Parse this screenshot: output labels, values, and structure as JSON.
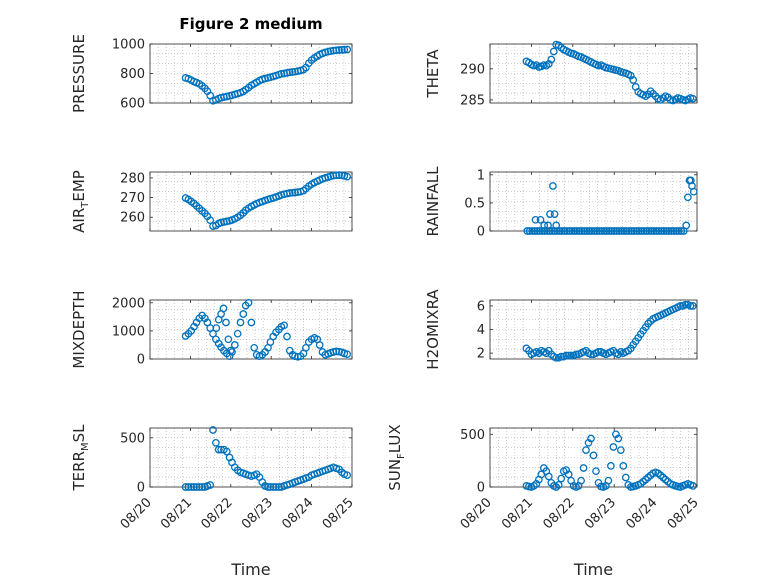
{
  "figure": {
    "title": "Figure 2 medium",
    "marker_color": "#0072BD",
    "grid_color": "#b0b0b0",
    "axis_color": "#262626"
  },
  "chart_data": [
    {
      "type": "scatter",
      "id": "pressure",
      "ylabel": "PRESSURE",
      "xlabel": "",
      "title": "Figure 2 medium",
      "xlim": [
        "08/20",
        "08/25"
      ],
      "xticks": [
        "08/20",
        "08/21",
        "08/22",
        "08/23",
        "08/24",
        "08/25"
      ],
      "ylim": [
        600,
        1000
      ],
      "yticks": [
        "600",
        "800",
        "1000"
      ],
      "grid": true,
      "x": [
        0.88,
        0.95,
        1.02,
        1.09,
        1.15,
        1.22,
        1.29,
        1.36,
        1.42,
        1.49,
        1.56,
        1.63,
        1.7,
        1.76,
        1.83,
        1.9,
        1.97,
        2.03,
        2.1,
        2.17,
        2.24,
        2.31,
        2.37,
        2.44,
        2.51,
        2.58,
        2.64,
        2.71,
        2.78,
        2.85,
        2.92,
        2.98,
        3.05,
        3.12,
        3.19,
        3.25,
        3.32,
        3.39,
        3.46,
        3.53,
        3.59,
        3.66,
        3.73,
        3.8,
        3.86,
        3.93,
        4.0,
        4.07,
        4.14,
        4.2,
        4.27,
        4.34,
        4.41,
        4.47,
        4.54,
        4.61,
        4.68,
        4.75,
        4.81,
        4.88
      ],
      "y": [
        770,
        765,
        755,
        745,
        738,
        730,
        715,
        700,
        680,
        650,
        615,
        620,
        630,
        636,
        640,
        644,
        648,
        652,
        658,
        664,
        670,
        678,
        690,
        704,
        720,
        730,
        740,
        752,
        760,
        766,
        770,
        775,
        780,
        786,
        792,
        798,
        800,
        804,
        808,
        810,
        812,
        816,
        820,
        826,
        840,
        870,
        890,
        905,
        918,
        928,
        936,
        943,
        948,
        952,
        955,
        957,
        959,
        960,
        962,
        963
      ]
    },
    {
      "type": "scatter",
      "id": "theta",
      "ylabel": "THETA",
      "xlabel": "",
      "xlim": [
        "08/20",
        "08/25"
      ],
      "xticks": [
        "08/20",
        "08/21",
        "08/22",
        "08/23",
        "08/24",
        "08/25"
      ],
      "ylim": [
        284.5,
        294
      ],
      "yticks": [
        "285",
        "290"
      ],
      "grid": true,
      "x": [
        0.88,
        0.94,
        1.0,
        1.06,
        1.12,
        1.18,
        1.24,
        1.3,
        1.36,
        1.42,
        1.48,
        1.54,
        1.6,
        1.66,
        1.72,
        1.78,
        1.84,
        1.9,
        1.96,
        2.02,
        2.08,
        2.14,
        2.2,
        2.26,
        2.32,
        2.38,
        2.44,
        2.5,
        2.56,
        2.62,
        2.68,
        2.74,
        2.8,
        2.86,
        2.92,
        2.98,
        3.04,
        3.1,
        3.16,
        3.22,
        3.28,
        3.34,
        3.4,
        3.46,
        3.52,
        3.58,
        3.64,
        3.7,
        3.76,
        3.82,
        3.88,
        3.94,
        4.0,
        4.06,
        4.12,
        4.18,
        4.24,
        4.3,
        4.36,
        4.42,
        4.48,
        4.54,
        4.6,
        4.66,
        4.72,
        4.78,
        4.84,
        4.9
      ],
      "y": [
        291.2,
        291.0,
        290.7,
        290.5,
        290.6,
        290.3,
        290.4,
        290.6,
        290.5,
        290.8,
        291.5,
        292.8,
        293.9,
        293.8,
        293.4,
        293.1,
        292.9,
        292.7,
        292.5,
        292.4,
        292.2,
        292.0,
        291.9,
        291.7,
        291.5,
        291.3,
        291.1,
        290.9,
        290.7,
        290.5,
        290.6,
        290.4,
        290.2,
        290.1,
        290.0,
        289.9,
        289.8,
        289.7,
        289.5,
        289.4,
        289.3,
        289.1,
        288.9,
        288.2,
        287.1,
        286.3,
        286.0,
        285.8,
        285.6,
        285.9,
        286.4,
        286.0,
        285.6,
        285.2,
        285.0,
        285.3,
        285.6,
        285.4,
        285.0,
        284.9,
        285.1,
        285.3,
        285.2,
        285.0,
        284.9,
        285.1,
        285.3,
        285.2
      ]
    },
    {
      "type": "scatter",
      "id": "air_temp",
      "ylabel": "AIR_TEMP",
      "ylabel_display": {
        "main": "AIR",
        "sub": "T",
        "rest": "EMP"
      },
      "xlabel": "",
      "xlim": [
        "08/20",
        "08/25"
      ],
      "xticks": [
        "08/20",
        "08/21",
        "08/22",
        "08/23",
        "08/24",
        "08/25"
      ],
      "ylim": [
        253,
        283
      ],
      "yticks": [
        "260",
        "270",
        "280"
      ],
      "grid": true,
      "x": [
        0.88,
        0.95,
        1.02,
        1.09,
        1.15,
        1.22,
        1.29,
        1.36,
        1.42,
        1.49,
        1.56,
        1.63,
        1.7,
        1.76,
        1.83,
        1.9,
        1.97,
        2.03,
        2.1,
        2.17,
        2.24,
        2.31,
        2.37,
        2.44,
        2.51,
        2.58,
        2.64,
        2.71,
        2.78,
        2.85,
        2.92,
        2.98,
        3.05,
        3.12,
        3.19,
        3.25,
        3.32,
        3.39,
        3.46,
        3.53,
        3.59,
        3.66,
        3.73,
        3.8,
        3.86,
        3.93,
        4.0,
        4.07,
        4.14,
        4.2,
        4.27,
        4.34,
        4.41,
        4.47,
        4.54,
        4.61,
        4.68,
        4.75,
        4.81,
        4.88
      ],
      "y": [
        269.8,
        269.0,
        268.0,
        267.0,
        265.8,
        264.5,
        263.2,
        262.0,
        260.5,
        258.5,
        255.5,
        255.8,
        256.8,
        257.3,
        257.6,
        257.9,
        258.2,
        258.6,
        259.2,
        260.0,
        261.0,
        262.2,
        263.5,
        264.6,
        265.5,
        266.2,
        266.9,
        267.5,
        268.0,
        268.5,
        269.0,
        269.4,
        269.8,
        270.3,
        270.8,
        271.3,
        271.7,
        272.0,
        272.3,
        272.5,
        272.6,
        272.8,
        273.0,
        273.5,
        274.5,
        275.8,
        276.8,
        277.6,
        278.3,
        278.9,
        279.5,
        280.0,
        280.4,
        280.8,
        281.1,
        281.3,
        281.4,
        281.3,
        281.0,
        280.6
      ]
    },
    {
      "type": "scatter",
      "id": "rainfall",
      "ylabel": "RAINFALL",
      "xlabel": "",
      "xlim": [
        "08/20",
        "08/25"
      ],
      "xticks": [
        "08/20",
        "08/21",
        "08/22",
        "08/23",
        "08/24",
        "08/25"
      ],
      "ylim": [
        0,
        1.05
      ],
      "yticks": [
        "0",
        "0.5",
        "1"
      ],
      "grid": true,
      "x": [
        0.9,
        0.96,
        1.02,
        1.08,
        1.14,
        1.2,
        1.26,
        1.32,
        1.38,
        1.44,
        1.5,
        1.56,
        1.62,
        1.68,
        1.74,
        1.8,
        1.86,
        1.92,
        1.98,
        2.04,
        2.1,
        2.16,
        2.22,
        2.28,
        2.34,
        2.4,
        2.46,
        2.52,
        2.58,
        2.64,
        2.7,
        2.76,
        2.82,
        2.88,
        2.94,
        3.0,
        3.06,
        3.12,
        3.18,
        3.24,
        3.3,
        3.36,
        3.42,
        3.48,
        3.54,
        3.6,
        3.66,
        3.72,
        3.78,
        3.84,
        3.9,
        3.96,
        4.02,
        4.08,
        4.14,
        4.2,
        4.26,
        4.32,
        4.38,
        4.44,
        4.5,
        4.56,
        4.62,
        4.68,
        4.74,
        4.78,
        4.82,
        4.85,
        4.88,
        4.92,
        1.1,
        1.22,
        1.31,
        1.4,
        1.45,
        1.52,
        1.56,
        1.6
      ],
      "y": [
        0,
        0,
        0,
        0,
        0,
        0,
        0,
        0,
        0,
        0,
        0,
        0,
        0,
        0,
        0,
        0,
        0,
        0,
        0,
        0,
        0,
        0,
        0,
        0,
        0,
        0,
        0,
        0,
        0,
        0,
        0,
        0,
        0,
        0,
        0,
        0,
        0,
        0,
        0,
        0,
        0,
        0,
        0,
        0,
        0,
        0,
        0,
        0,
        0,
        0,
        0,
        0,
        0,
        0,
        0,
        0,
        0,
        0,
        0,
        0,
        0,
        0,
        0,
        0,
        0.1,
        0.6,
        0.9,
        0.9,
        0.8,
        0.7,
        0.2,
        0.2,
        0.1,
        0.1,
        0.3,
        0.8,
        0.3,
        0.1
      ]
    },
    {
      "type": "scatter",
      "id": "mixdepth",
      "ylabel": "MIXDEPTH",
      "xlabel": "",
      "xlim": [
        "08/20",
        "08/25"
      ],
      "xticks": [
        "08/20",
        "08/21",
        "08/22",
        "08/23",
        "08/24",
        "08/25"
      ],
      "ylim": [
        0,
        2100
      ],
      "yticks": [
        "0",
        "1000",
        "2000"
      ],
      "grid": true,
      "x": [
        0.88,
        0.95,
        1.02,
        1.09,
        1.15,
        1.22,
        1.29,
        1.36,
        1.42,
        1.49,
        1.56,
        1.63,
        1.7,
        1.76,
        1.83,
        1.9,
        1.97,
        2.03,
        2.1,
        2.17,
        2.24,
        2.31,
        2.37,
        2.44,
        2.51,
        2.58,
        2.64,
        2.71,
        2.78,
        2.85,
        2.92,
        2.98,
        3.05,
        3.12,
        3.19,
        3.25,
        3.32,
        3.39,
        3.46,
        3.53,
        3.59,
        3.66,
        3.73,
        3.8,
        3.86,
        3.93,
        4.0,
        4.07,
        4.14,
        4.2,
        4.27,
        4.34,
        4.41,
        4.47,
        4.54,
        4.61,
        4.68,
        4.75,
        4.81,
        4.88,
        1.64,
        1.7,
        1.76,
        1.82,
        1.88,
        1.94,
        2.0
      ],
      "y": [
        820,
        900,
        1000,
        1150,
        1300,
        1450,
        1550,
        1450,
        1300,
        1100,
        900,
        700,
        550,
        420,
        300,
        200,
        100,
        250,
        500,
        900,
        1300,
        1600,
        1900,
        2000,
        1300,
        400,
        150,
        100,
        150,
        250,
        400,
        600,
        800,
        950,
        1050,
        1150,
        1200,
        800,
        300,
        150,
        100,
        80,
        100,
        200,
        400,
        600,
        700,
        750,
        700,
        500,
        250,
        150,
        180,
        220,
        250,
        270,
        260,
        240,
        200,
        170,
        1100,
        1400,
        1600,
        1800,
        1300,
        700,
        300
      ]
    },
    {
      "type": "scatter",
      "id": "h2omixra",
      "ylabel": "H2OMIXRA",
      "xlabel": "",
      "xlim": [
        "08/20",
        "08/25"
      ],
      "xticks": [
        "08/20",
        "08/21",
        "08/22",
        "08/23",
        "08/24",
        "08/25"
      ],
      "ylim": [
        1.5,
        6.5
      ],
      "yticks": [
        "2",
        "4",
        "6"
      ],
      "grid": true,
      "x": [
        0.88,
        0.94,
        1.0,
        1.06,
        1.12,
        1.18,
        1.24,
        1.3,
        1.36,
        1.42,
        1.48,
        1.54,
        1.6,
        1.66,
        1.72,
        1.78,
        1.84,
        1.9,
        1.96,
        2.02,
        2.08,
        2.14,
        2.2,
        2.26,
        2.32,
        2.38,
        2.44,
        2.5,
        2.56,
        2.62,
        2.68,
        2.74,
        2.8,
        2.86,
        2.92,
        2.98,
        3.04,
        3.1,
        3.16,
        3.22,
        3.28,
        3.34,
        3.4,
        3.46,
        3.52,
        3.58,
        3.64,
        3.7,
        3.76,
        3.82,
        3.88,
        3.94,
        4.0,
        4.06,
        4.12,
        4.18,
        4.24,
        4.3,
        4.36,
        4.42,
        4.48,
        4.54,
        4.6,
        4.66,
        4.72,
        4.78,
        4.84,
        4.9
      ],
      "y": [
        2.4,
        2.2,
        1.9,
        2.0,
        2.1,
        2.0,
        2.2,
        2.1,
        2.0,
        2.2,
        1.9,
        1.7,
        1.6,
        1.6,
        1.7,
        1.7,
        1.8,
        1.8,
        1.8,
        1.8,
        1.9,
        1.9,
        2.0,
        2.1,
        2.2,
        2.0,
        1.9,
        1.9,
        2.0,
        2.1,
        2.1,
        2.0,
        1.9,
        2.0,
        2.1,
        2.2,
        2.0,
        1.9,
        2.1,
        2.0,
        2.1,
        2.2,
        2.4,
        2.7,
        3.0,
        3.3,
        3.6,
        3.9,
        4.2,
        4.5,
        4.7,
        4.9,
        5.0,
        5.1,
        5.2,
        5.3,
        5.4,
        5.5,
        5.6,
        5.7,
        5.8,
        5.9,
        6.0,
        6.0,
        6.1,
        6.1,
        6.0,
        6.0
      ]
    },
    {
      "type": "scatter",
      "id": "terr_msl",
      "ylabel": "TERR_MSL",
      "ylabel_display": {
        "main": "TERR",
        "sub": "M",
        "rest": "SL"
      },
      "xlabel": "Time",
      "xlim": [
        "08/20",
        "08/25"
      ],
      "xticks": [
        "08/20",
        "08/21",
        "08/22",
        "08/23",
        "08/24",
        "08/25"
      ],
      "ylim": [
        0,
        600
      ],
      "yticks": [
        "0",
        "500"
      ],
      "grid": true,
      "x": [
        0.88,
        0.95,
        1.02,
        1.09,
        1.15,
        1.22,
        1.29,
        1.36,
        1.42,
        1.49,
        1.56,
        1.63,
        1.7,
        1.76,
        1.83,
        1.9,
        1.97,
        2.03,
        2.1,
        2.17,
        2.24,
        2.31,
        2.37,
        2.44,
        2.51,
        2.58,
        2.64,
        2.71,
        2.78,
        2.85,
        2.92,
        2.98,
        3.05,
        3.12,
        3.19,
        3.25,
        3.32,
        3.39,
        3.46,
        3.53,
        3.59,
        3.66,
        3.73,
        3.8,
        3.86,
        3.93,
        4.0,
        4.07,
        4.14,
        4.2,
        4.27,
        4.34,
        4.41,
        4.47,
        4.54,
        4.61,
        4.68,
        4.75,
        4.81,
        4.88
      ],
      "y": [
        0,
        0,
        0,
        0,
        0,
        0,
        0,
        0,
        10,
        20,
        580,
        450,
        380,
        380,
        380,
        360,
        300,
        250,
        200,
        170,
        150,
        140,
        130,
        120,
        110,
        120,
        130,
        100,
        50,
        10,
        0,
        0,
        0,
        0,
        0,
        0,
        10,
        20,
        30,
        40,
        50,
        60,
        70,
        80,
        90,
        100,
        120,
        130,
        140,
        150,
        160,
        170,
        180,
        190,
        200,
        190,
        180,
        150,
        130,
        120
      ]
    },
    {
      "type": "scatter",
      "id": "sun_flux",
      "ylabel": "SUN_FLUX",
      "ylabel_display": {
        "main": "SUN",
        "sub": "F",
        "rest": "LUX"
      },
      "xlabel": "Time",
      "xlim": [
        "08/20",
        "08/25"
      ],
      "xticks": [
        "08/20",
        "08/21",
        "08/22",
        "08/23",
        "08/24",
        "08/25"
      ],
      "ylim": [
        0,
        560
      ],
      "yticks": [
        "0",
        "500"
      ],
      "grid": true,
      "x": [
        0.88,
        0.94,
        1.0,
        1.06,
        1.12,
        1.18,
        1.24,
        1.3,
        1.36,
        1.42,
        1.48,
        1.54,
        1.6,
        1.66,
        1.72,
        1.78,
        1.84,
        1.9,
        1.96,
        2.02,
        2.08,
        2.14,
        2.2,
        2.26,
        2.32,
        2.38,
        2.44,
        2.5,
        2.56,
        2.62,
        2.68,
        2.74,
        2.8,
        2.86,
        2.92,
        2.98,
        3.04,
        3.1,
        3.16,
        3.22,
        3.28,
        3.34,
        3.4,
        3.46,
        3.52,
        3.58,
        3.64,
        3.7,
        3.76,
        3.82,
        3.88,
        3.94,
        4.0,
        4.06,
        4.12,
        4.18,
        4.24,
        4.3,
        4.36,
        4.42,
        4.48,
        4.54,
        4.6,
        4.66,
        4.72,
        4.78,
        4.84,
        4.9
      ],
      "y": [
        10,
        5,
        0,
        10,
        30,
        70,
        120,
        180,
        150,
        100,
        40,
        10,
        0,
        20,
        80,
        150,
        160,
        120,
        60,
        10,
        0,
        10,
        60,
        180,
        350,
        420,
        460,
        300,
        150,
        40,
        5,
        0,
        10,
        60,
        200,
        380,
        500,
        460,
        350,
        200,
        90,
        20,
        0,
        5,
        10,
        20,
        30,
        50,
        70,
        90,
        110,
        130,
        140,
        130,
        110,
        90,
        70,
        50,
        30,
        20,
        10,
        5,
        0,
        10,
        20,
        30,
        20,
        10
      ]
    }
  ]
}
